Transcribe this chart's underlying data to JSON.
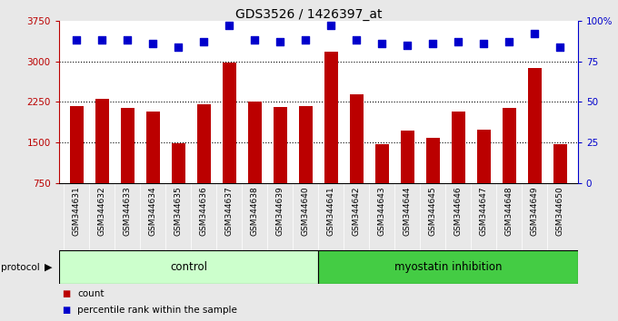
{
  "title": "GDS3526 / 1426397_at",
  "samples": [
    "GSM344631",
    "GSM344632",
    "GSM344633",
    "GSM344634",
    "GSM344635",
    "GSM344636",
    "GSM344637",
    "GSM344638",
    "GSM344639",
    "GSM344640",
    "GSM344641",
    "GSM344642",
    "GSM344643",
    "GSM344644",
    "GSM344645",
    "GSM344646",
    "GSM344647",
    "GSM344648",
    "GSM344649",
    "GSM344650"
  ],
  "counts": [
    2175,
    2310,
    2140,
    2075,
    1490,
    2200,
    2980,
    2260,
    2150,
    2165,
    3180,
    2390,
    1460,
    1720,
    1590,
    2080,
    1730,
    2140,
    2870,
    1460
  ],
  "percentile_ranks": [
    88,
    88,
    88,
    86,
    84,
    87,
    97,
    88,
    87,
    88,
    97,
    88,
    86,
    85,
    86,
    87,
    86,
    87,
    92,
    84
  ],
  "control_count": 10,
  "myostatin_count": 10,
  "bar_color": "#bb0000",
  "dot_color": "#0000cc",
  "ylim_left": [
    750,
    3750
  ],
  "ylim_right": [
    0,
    100
  ],
  "yticks_left": [
    750,
    1500,
    2250,
    3000,
    3750
  ],
  "yticks_right": [
    0,
    25,
    50,
    75,
    100
  ],
  "ytick_labels_right": [
    "0",
    "25",
    "50",
    "75",
    "100%"
  ],
  "grid_values": [
    1500,
    2250,
    3000
  ],
  "fig_bg_color": "#e8e8e8",
  "plot_bg_color": "#ffffff",
  "xtick_bg_color": "#d0d0d0",
  "control_label": "control",
  "myostatin_label": "myostatin inhibition",
  "protocol_label": "protocol",
  "legend_count_label": "count",
  "legend_pct_label": "percentile rank within the sample",
  "control_bg": "#ccffcc",
  "myostatin_bg": "#44cc44",
  "bar_width": 0.55,
  "dot_size": 40
}
